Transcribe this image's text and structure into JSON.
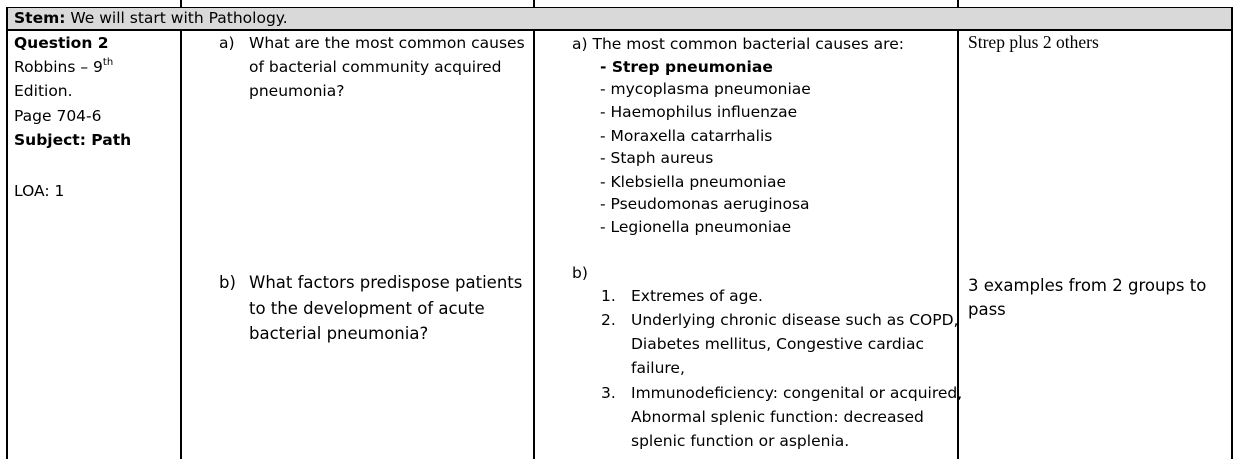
{
  "stem": {
    "label": "Stem:",
    "text": "We will start with Pathology."
  },
  "info": {
    "question": "Question 2",
    "source": "Robbins – 9",
    "source_sup": "th",
    "edition": "Edition.",
    "page": "Page 704-6",
    "subject": "Subject: Path",
    "loa": "LOA:  1"
  },
  "q_a": {
    "marker": "a)",
    "lines": [
      "What are the most common causes",
      "of bacterial community acquired",
      "pneumonia?"
    ]
  },
  "q_b": {
    "marker": "b)",
    "lines": [
      "What factors predispose patients",
      "to the development of acute",
      "bacterial pneumonia?"
    ]
  },
  "ans_a": {
    "intro": "a) The most common bacterial causes are:",
    "bold_item": "- Strep pneumoniae",
    "items": [
      "- mycoplasma pneumoniae",
      "- Haemophilus influenzae",
      "- Moraxella catarrhalis",
      "- Staph aureus",
      "- Klebsiella pneumoniae",
      "- Pseudomonas aeruginosa",
      "- Legionella pneumoniae"
    ]
  },
  "ans_b": {
    "marker": "b)",
    "items": [
      {
        "num": "1.",
        "lines": [
          "Extremes of age."
        ]
      },
      {
        "num": "2.",
        "lines": [
          "Underlying chronic disease such as COPD,",
          "Diabetes mellitus, Congestive cardiac",
          "failure,"
        ]
      },
      {
        "num": "3.",
        "lines": [
          "Immunodeficiency: congenital or acquired,",
          "Abnormal splenic function: decreased",
          "splenic function or asplenia."
        ]
      }
    ]
  },
  "pass_a": "Strep plus 2 others",
  "pass_b": {
    "lines": [
      "3 examples from 2 groups to",
      "pass"
    ]
  }
}
